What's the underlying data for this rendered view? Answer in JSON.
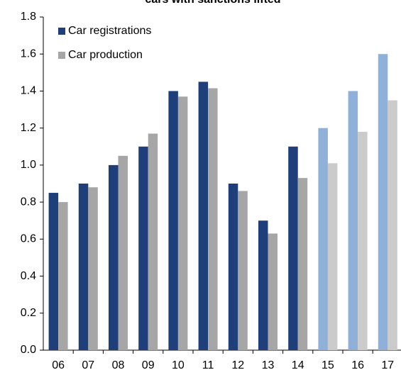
{
  "chart_data": {
    "type": "bar",
    "title": "cars with sanctions lifted",
    "categories": [
      "06",
      "07",
      "08",
      "09",
      "10",
      "11",
      "12",
      "13",
      "14",
      "15",
      "16",
      "17"
    ],
    "series": [
      {
        "name": "Car registrations",
        "color": "#1f3f7a",
        "colors": [
          "#1f3f7a",
          "#1f3f7a",
          "#1f3f7a",
          "#1f3f7a",
          "#1f3f7a",
          "#1f3f7a",
          "#1f3f7a",
          "#1f3f7a",
          "#1f3f7a",
          "#8fb0d9",
          "#8fb0d9",
          "#8fb0d9"
        ],
        "values": [
          0.85,
          0.9,
          1.0,
          1.1,
          1.4,
          1.45,
          0.9,
          0.7,
          1.1,
          1.2,
          1.4,
          1.6
        ]
      },
      {
        "name": "Car production",
        "color": "#a6a6a6",
        "colors": [
          "#a6a6a6",
          "#a6a6a6",
          "#a6a6a6",
          "#a6a6a6",
          "#a6a6a6",
          "#a6a6a6",
          "#a6a6a6",
          "#a6a6a6",
          "#a6a6a6",
          "#cbcbcb",
          "#cbcbcb",
          "#cbcbcb"
        ],
        "values": [
          0.8,
          0.88,
          1.05,
          1.17,
          1.37,
          1.415,
          0.86,
          0.63,
          0.93,
          1.01,
          1.18,
          1.35
        ]
      }
    ],
    "ylim": [
      0,
      1.8
    ],
    "yticks": [
      {
        "value": 0,
        "label": "0.0"
      },
      0.2,
      0.4,
      0.6,
      0.8,
      {
        "value": 1,
        "label": "1.0"
      },
      1.2,
      1.4,
      1.6,
      1.8
    ],
    "grid": false,
    "legend": "top-left"
  }
}
